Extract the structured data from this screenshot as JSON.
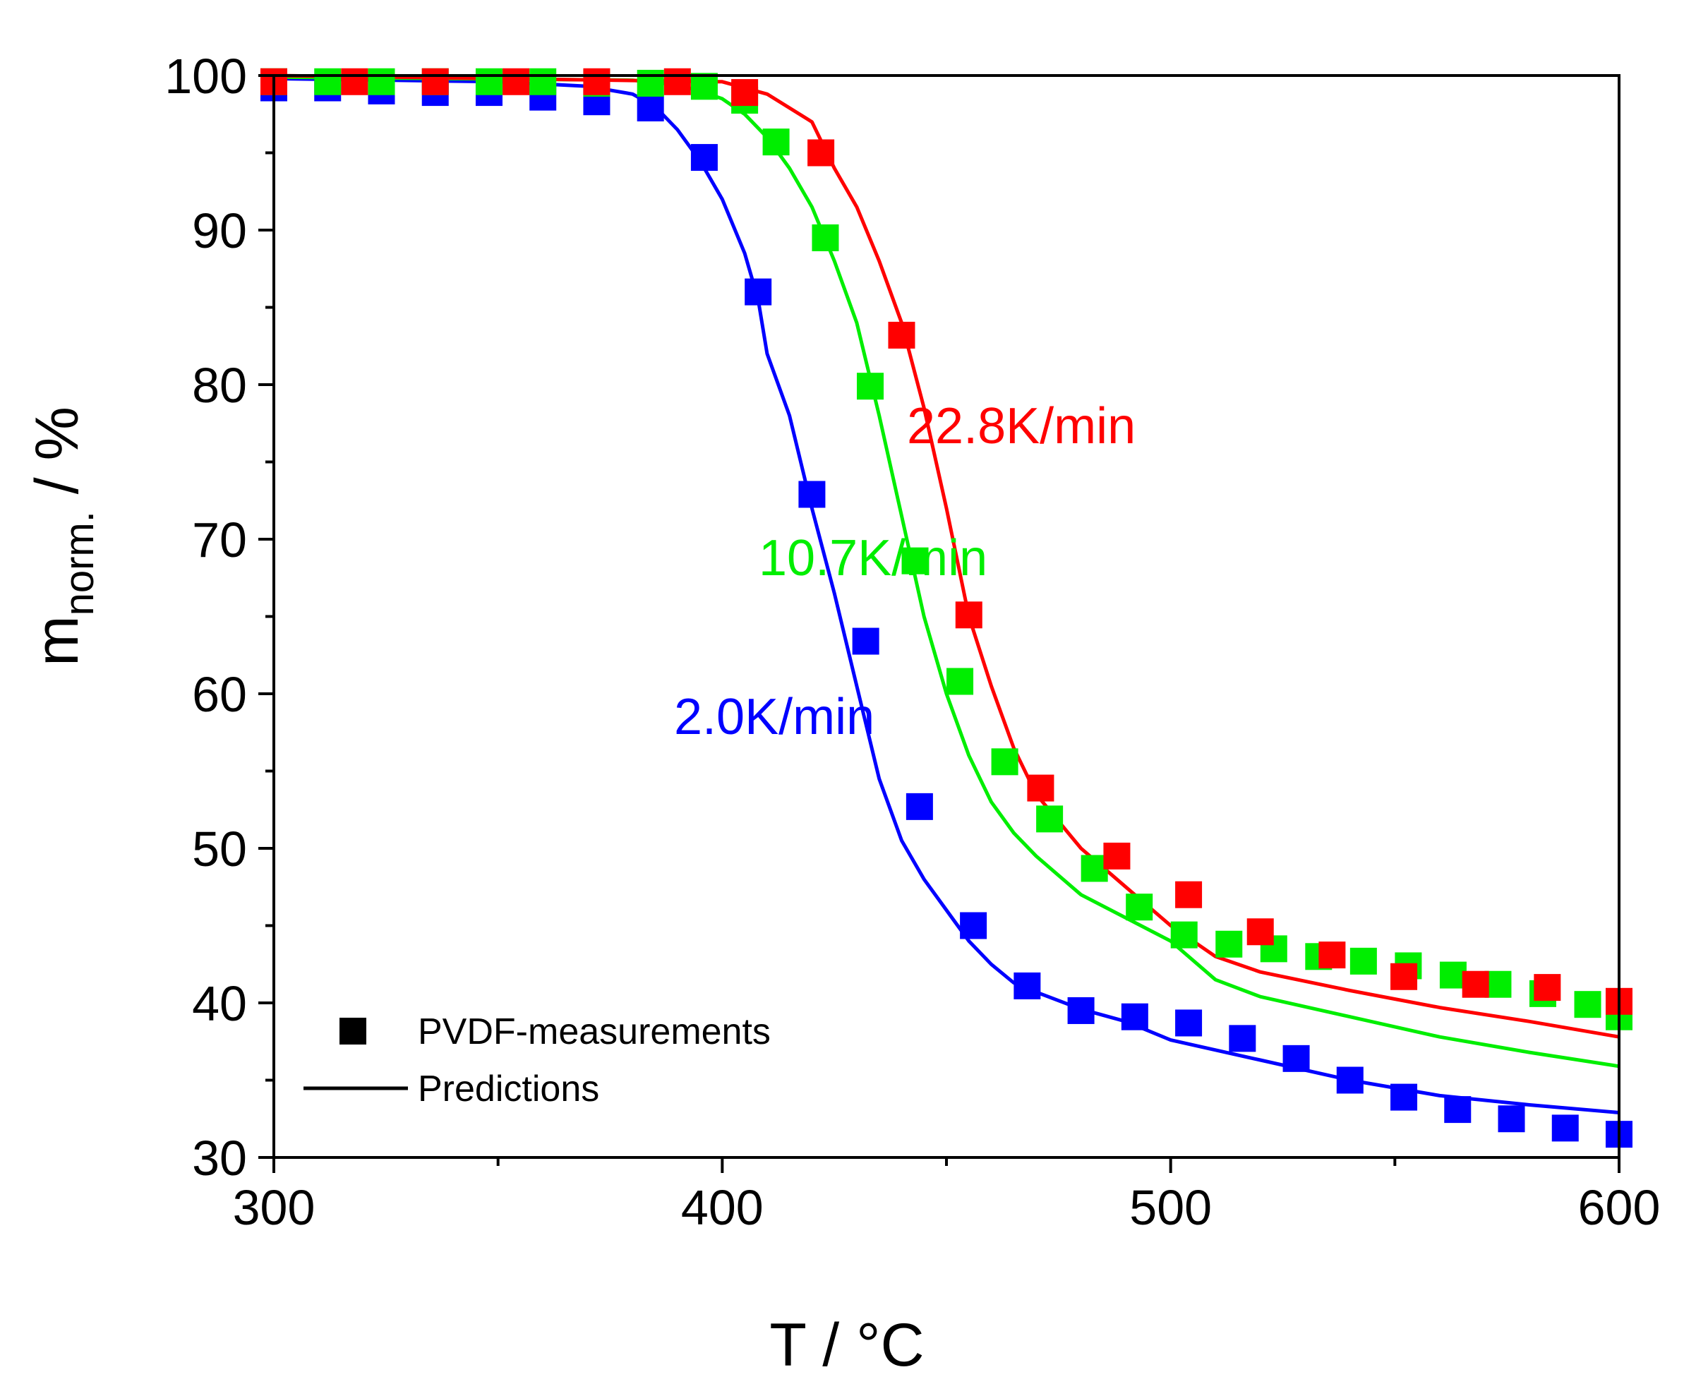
{
  "chart_data": {
    "type": "scatter",
    "title": "",
    "xlabel": "T / °C",
    "ylabel": {
      "main": "m",
      "subscript": "norm.",
      "suffix": " / %"
    },
    "xlim": [
      300,
      600
    ],
    "ylim": [
      30,
      100
    ],
    "xticks": [
      300,
      400,
      500,
      600
    ],
    "yticks": [
      30,
      40,
      50,
      60,
      70,
      80,
      90,
      100
    ],
    "grid": false,
    "legend": {
      "position": "bottom-left",
      "entries": [
        {
          "name": "PVDF-measurements",
          "marker": "square"
        },
        {
          "name": "Predictions",
          "marker": "line"
        }
      ]
    },
    "series": [
      {
        "name": "2.0K/min",
        "color": "#0000ff",
        "measurements": {
          "x": [
            300,
            312,
            324,
            336,
            348,
            360,
            372,
            384,
            396,
            408,
            420,
            432,
            444,
            456,
            468,
            480,
            492,
            504,
            516,
            528,
            540,
            552,
            564,
            576,
            588,
            600
          ],
          "y": [
            99.2,
            99.2,
            99.0,
            98.9,
            98.9,
            98.6,
            98.3,
            97.9,
            94.7,
            86.0,
            72.9,
            63.4,
            52.7,
            45.0,
            41.1,
            39.5,
            39.1,
            38.7,
            37.7,
            36.4,
            35.0,
            33.9,
            33.1,
            32.5,
            31.9,
            31.5
          ]
        },
        "prediction": {
          "x": [
            300,
            350,
            370,
            380,
            385,
            390,
            395,
            400,
            405,
            408,
            410,
            415,
            420,
            425,
            430,
            435,
            440,
            445,
            450,
            455,
            460,
            465,
            470,
            480,
            490,
            500,
            520,
            540,
            560,
            580,
            600
          ],
          "y": [
            99.8,
            99.6,
            99.3,
            98.8,
            98.0,
            96.5,
            94.5,
            92.0,
            88.5,
            85.5,
            82.0,
            78.0,
            72.0,
            66.5,
            60.5,
            54.5,
            50.5,
            48.0,
            46.0,
            44.0,
            42.5,
            41.3,
            40.7,
            39.6,
            38.8,
            37.6,
            36.3,
            35.0,
            34.0,
            33.4,
            32.9
          ]
        }
      },
      {
        "name": "10.7K/min",
        "color": "#00ee00",
        "measurements": {
          "x": [
            300,
            312,
            324,
            336,
            348,
            360,
            372,
            384,
            396,
            405,
            412,
            423,
            433,
            443,
            453,
            463,
            473,
            483,
            493,
            503,
            513,
            523,
            533,
            543,
            553,
            563,
            573,
            583,
            593,
            600
          ],
          "y": [
            99.6,
            99.6,
            99.6,
            99.6,
            99.6,
            99.6,
            99.5,
            99.5,
            99.3,
            98.4,
            95.7,
            89.5,
            79.9,
            68.6,
            60.8,
            55.6,
            51.9,
            48.7,
            46.2,
            44.4,
            43.8,
            43.5,
            43.0,
            42.7,
            42.4,
            41.8,
            41.2,
            40.6,
            39.9,
            39.1
          ]
        },
        "prediction": {
          "x": [
            300,
            380,
            390,
            395,
            400,
            405,
            410,
            415,
            420,
            425,
            430,
            435,
            440,
            445,
            450,
            455,
            460,
            465,
            470,
            480,
            490,
            500,
            510,
            520,
            540,
            560,
            580,
            600
          ],
          "y": [
            99.9,
            99.7,
            99.4,
            99.0,
            98.5,
            97.5,
            96.0,
            94.0,
            91.5,
            88.0,
            84.0,
            78.0,
            71.5,
            65.0,
            60.0,
            56.0,
            53.0,
            51.0,
            49.5,
            47.0,
            45.5,
            44.0,
            41.5,
            40.4,
            39.1,
            37.8,
            36.8,
            35.9
          ]
        }
      },
      {
        "name": "22.8K/min",
        "color": "#ff0000",
        "measurements": {
          "x": [
            300,
            318,
            336,
            354,
            372,
            390,
            405,
            422,
            440,
            455,
            471,
            488,
            504,
            520,
            536,
            552,
            568,
            584,
            600
          ],
          "y": [
            99.6,
            99.6,
            99.6,
            99.6,
            99.6,
            99.6,
            98.9,
            95.0,
            83.2,
            65.1,
            53.9,
            49.5,
            47.0,
            44.6,
            43.1,
            41.7,
            41.2,
            41.0,
            40.1
          ]
        },
        "prediction": {
          "x": [
            300,
            400,
            410,
            420,
            425,
            430,
            435,
            440,
            445,
            450,
            455,
            460,
            465,
            470,
            480,
            490,
            500,
            510,
            520,
            540,
            560,
            580,
            600
          ],
          "y": [
            100.0,
            99.6,
            98.8,
            97.0,
            94.0,
            91.5,
            88.0,
            84.0,
            78.5,
            72.0,
            65.0,
            60.5,
            56.5,
            53.5,
            50.0,
            47.5,
            45.0,
            43.0,
            42.0,
            40.8,
            39.7,
            38.8,
            37.8
          ]
        }
      }
    ],
    "annotations": [
      {
        "text": "22.8K/min",
        "series": "22.8K/min"
      },
      {
        "text": "10.7K/min",
        "series": "10.7K/min"
      },
      {
        "text": "2.0K/min",
        "series": "2.0K/min"
      }
    ]
  }
}
